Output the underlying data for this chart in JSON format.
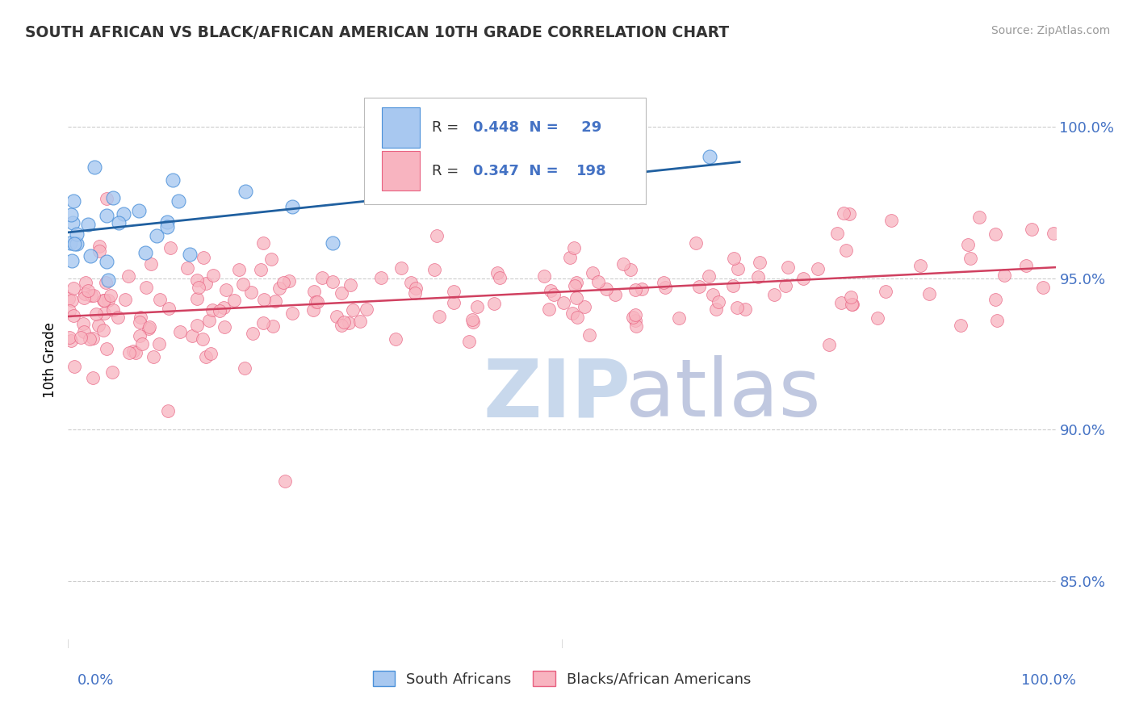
{
  "title": "SOUTH AFRICAN VS BLACK/AFRICAN AMERICAN 10TH GRADE CORRELATION CHART",
  "source": "Source: ZipAtlas.com",
  "ylabel": "10th Grade",
  "y_axis_values": [
    0.85,
    0.9,
    0.95,
    1.0
  ],
  "y_axis_labels": [
    "85.0%",
    "90.0%",
    "95.0%",
    "100.0%"
  ],
  "xmin": 0.0,
  "xmax": 1.0,
  "ymin": 0.828,
  "ymax": 1.018,
  "blue_R": 0.448,
  "blue_N": 29,
  "pink_R": 0.347,
  "pink_N": 198,
  "legend_label_blue": "South Africans",
  "legend_label_pink": "Blacks/African Americans",
  "blue_fill_color": "#A8C8F0",
  "blue_edge_color": "#4A90D9",
  "pink_fill_color": "#F8B4C0",
  "pink_edge_color": "#E86080",
  "blue_line_color": "#2060A0",
  "pink_line_color": "#D04060",
  "watermark_zip_color": "#C8D8EC",
  "watermark_atlas_color": "#C0C8E0",
  "bg_color": "#FFFFFF",
  "grid_color": "#CCCCCC",
  "axis_label_color": "#4472C4",
  "title_color": "#333333",
  "source_color": "#999999",
  "legend_text_color": "#333333",
  "legend_value_color": "#4472C4"
}
